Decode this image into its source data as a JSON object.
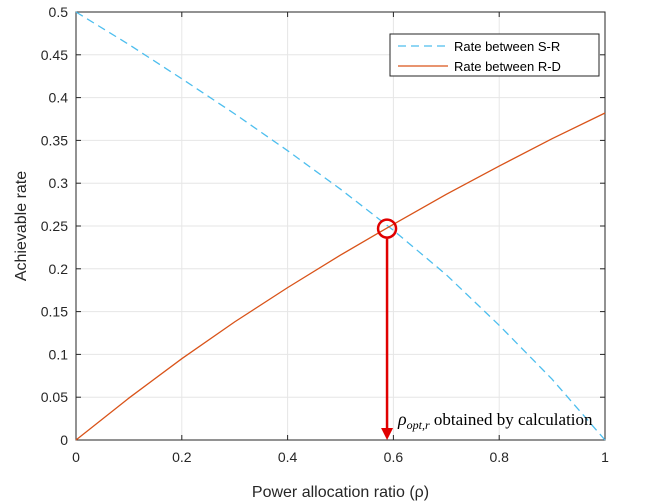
{
  "chart_data": {
    "type": "line",
    "title": "",
    "xlabel": "Power allocation ratio (ρ)",
    "ylabel": "Achievable rate",
    "xlim": [
      0,
      1
    ],
    "ylim": [
      0,
      0.5
    ],
    "xticks": [
      0,
      0.2,
      0.4,
      0.6,
      0.8,
      1
    ],
    "xtick_labels": [
      "0",
      "0.2",
      "0.4",
      "0.6",
      "0.8",
      "1"
    ],
    "yticks": [
      0,
      0.05,
      0.1,
      0.15,
      0.2,
      0.25,
      0.3,
      0.35,
      0.4,
      0.45,
      0.5
    ],
    "ytick_labels": [
      "0",
      "0.05",
      "0.1",
      "0.15",
      "0.2",
      "0.25",
      "0.3",
      "0.35",
      "0.4",
      "0.45",
      "0.5"
    ],
    "grid": true,
    "legend_position": "top-right",
    "series": [
      {
        "name": "Rate between S-R",
        "color": "#4DBEEE",
        "style": "dashed",
        "x": [
          0,
          0.1,
          0.2,
          0.3,
          0.4,
          0.5,
          0.6,
          0.7,
          0.8,
          0.9,
          1.0
        ],
        "y": [
          0.5,
          0.462,
          0.422,
          0.381,
          0.338,
          0.293,
          0.245,
          0.193,
          0.134,
          0.071,
          0.0
        ]
      },
      {
        "name": "Rate between R-D",
        "color": "#D95319",
        "style": "solid",
        "x": [
          0,
          0.1,
          0.2,
          0.3,
          0.4,
          0.5,
          0.6,
          0.7,
          0.8,
          0.9,
          1.0
        ],
        "y": [
          0.0,
          0.049,
          0.095,
          0.138,
          0.178,
          0.216,
          0.252,
          0.287,
          0.32,
          0.352,
          0.382
        ]
      }
    ],
    "annotation": {
      "marker_x": 0.588,
      "marker_y": 0.247,
      "marker_color": "#E00000",
      "arrow_to_y": 0,
      "symbol": "ρ",
      "subscript": "opt,r",
      "text": " obtained by calculation"
    }
  }
}
